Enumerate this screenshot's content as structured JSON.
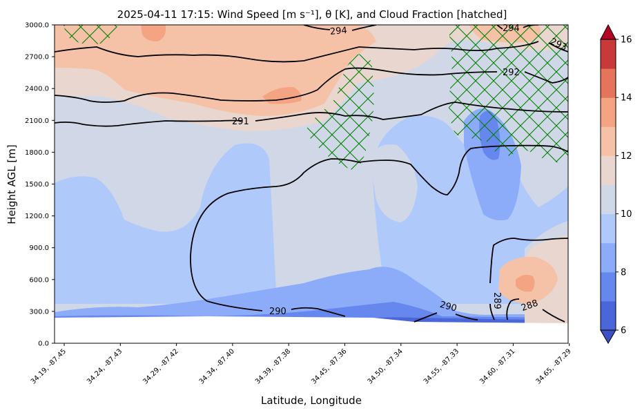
{
  "chart_data": {
    "type": "contour",
    "title": "2025-04-11 17:15: Wind Speed [m s⁻¹], θ [K], and Cloud Fraction [hatched]",
    "xlabel": "Latitude, Longitude",
    "ylabel": "Height AGL [m]",
    "ylim": [
      0,
      3000
    ],
    "y_ticks": [
      "0.0",
      "300.0",
      "600.0",
      "900.0",
      "1200.0",
      "1500.0",
      "1800.0",
      "2100.0",
      "2400.0",
      "2700.0",
      "3000.0"
    ],
    "x_ticks": [
      "34.19, -87.45",
      "34.24, -87.43",
      "34.29, -87.42",
      "34.34, -87.40",
      "34.39, -87.38",
      "34.45, -87.36",
      "34.50, -87.34",
      "34.55, -87.33",
      "34.60, -87.31",
      "34.65, -87.29"
    ],
    "colorbar": {
      "label": "Wind Speed [m s⁻¹]",
      "ticks": [
        "6",
        "8",
        "10",
        "12",
        "14",
        "16"
      ],
      "levels": [
        6,
        7,
        8,
        9,
        10,
        11,
        12,
        13,
        14,
        15,
        16
      ],
      "colors": [
        "#4a66d8",
        "#6688ee",
        "#8cacfa",
        "#b0c9fb",
        "#d0d8e8",
        "#e8d6cf",
        "#f5c2a8",
        "#f4a383",
        "#e4745a",
        "#c83a3a"
      ],
      "extend_low_color": "#3c4fc4",
      "extend_high_color": "#b40426"
    },
    "theta_contour_labels": [
      "294",
      "294",
      "293",
      "292",
      "291",
      "290",
      "290",
      "289",
      "288"
    ],
    "hatch_color": "#008000",
    "theta_line_color": "#000000"
  }
}
